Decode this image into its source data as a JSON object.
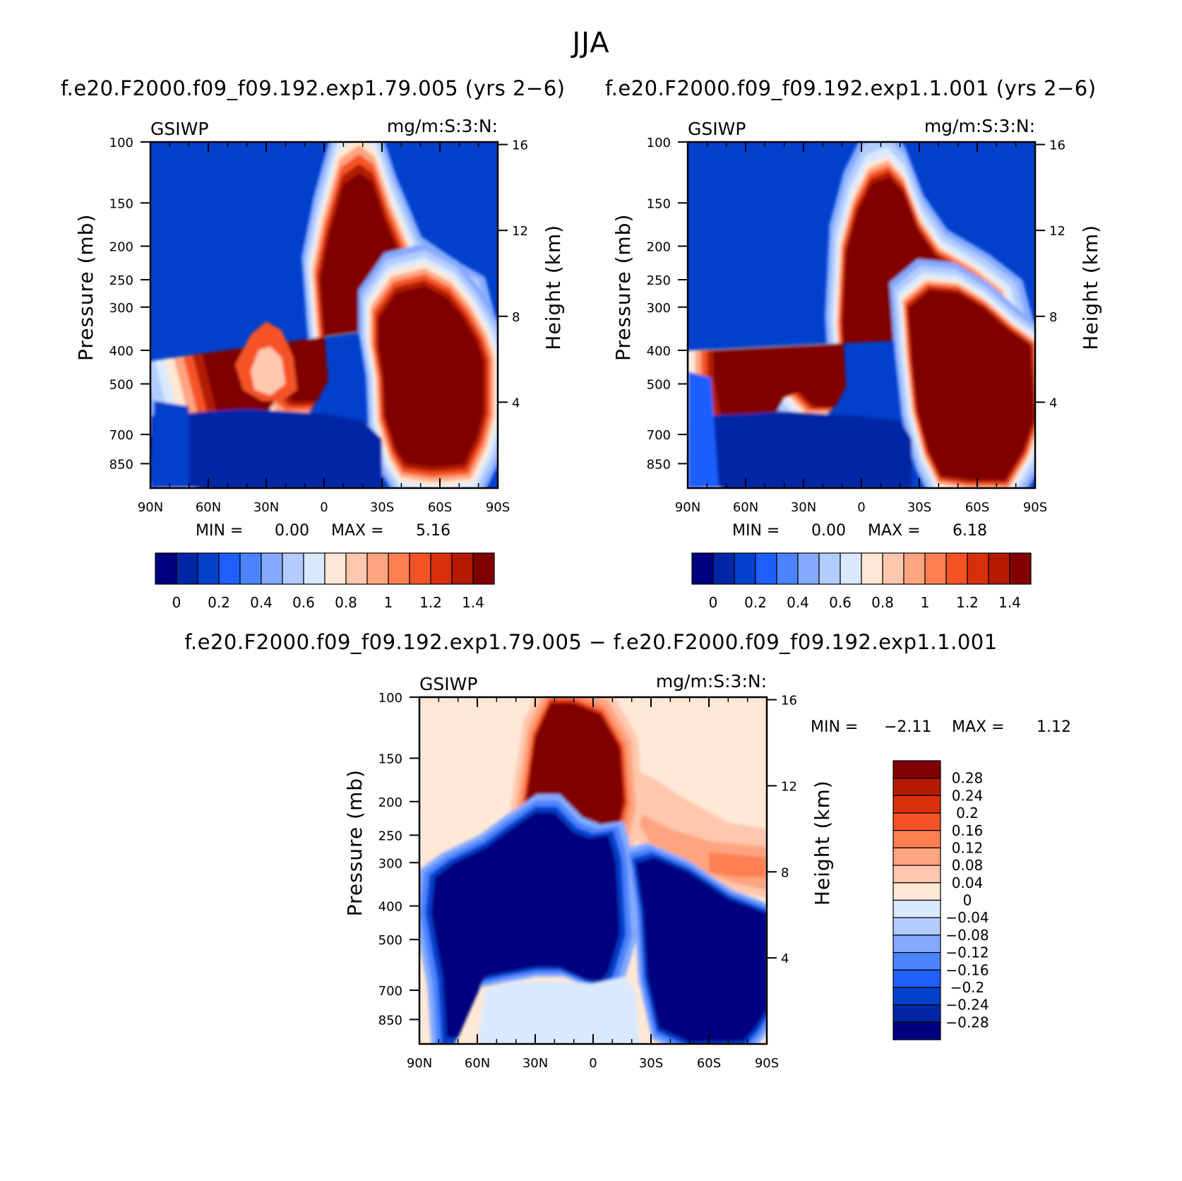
{
  "figure": {
    "title": "JJA",
    "background": "#ffffff"
  },
  "colors": {
    "abs": [
      "#000080",
      "#0026a6",
      "#0040cc",
      "#1f5eff",
      "#4c84ff",
      "#85aaff",
      "#b3ccff",
      "#d9e9ff",
      "#ffe8d6",
      "#ffc7ad",
      "#ffa480",
      "#ff7f52",
      "#f55325",
      "#d9300c",
      "#b31a00",
      "#800000"
    ],
    "diff": [
      "#000080",
      "#0026a6",
      "#0040cc",
      "#1f5eff",
      "#4c84ff",
      "#85aaff",
      "#b3ccff",
      "#d9e9ff",
      "#ffe8d6",
      "#ffc7ad",
      "#ffa480",
      "#ff7f52",
      "#f55325",
      "#d9300c",
      "#b31a00",
      "#800000"
    ]
  },
  "chart_data": [
    {
      "type": "heatmap",
      "title": "f.e20.F2000.f09_f09.192.exp1.79.005 (yrs 2−6)",
      "left_label": "GSIWP",
      "units": "mg/m:S:3:N:",
      "ylabel": "Pressure (mb)",
      "y2label": "Height (km)",
      "x_ticks": [
        "90N",
        "60N",
        "30N",
        "0",
        "30S",
        "60S",
        "90S"
      ],
      "y_ticks": [
        100,
        150,
        200,
        250,
        300,
        400,
        500,
        700,
        850
      ],
      "y2_ticks": [
        16,
        12,
        8,
        4
      ],
      "ylim": [
        100,
        1000
      ],
      "min_text": "MIN =",
      "min_value": "0.00",
      "max_text": "MAX =",
      "max_value": "5.16",
      "colorbar_labels": [
        "0",
        "0.2",
        "0.4",
        "0.6",
        "0.8",
        "1",
        "1.2",
        "1.4"
      ],
      "levels": [
        -0.1,
        0,
        0.1,
        0.2,
        0.3,
        0.4,
        0.5,
        0.6,
        0.7,
        0.8,
        0.9,
        1.0,
        1.1,
        1.2,
        1.3,
        1.4
      ]
    },
    {
      "type": "heatmap",
      "title": "f.e20.F2000.f09_f09.192.exp1.1.001 (yrs 2−6)",
      "left_label": "GSIWP",
      "units": "mg/m:S:3:N:",
      "ylabel": "Pressure (mb)",
      "y2label": "Height (km)",
      "x_ticks": [
        "90N",
        "60N",
        "30N",
        "0",
        "30S",
        "60S",
        "90S"
      ],
      "y_ticks": [
        100,
        150,
        200,
        250,
        300,
        400,
        500,
        700,
        850
      ],
      "y2_ticks": [
        16,
        12,
        8,
        4
      ],
      "ylim": [
        100,
        1000
      ],
      "min_text": "MIN =",
      "min_value": "0.00",
      "max_text": "MAX =",
      "max_value": "6.18",
      "colorbar_labels": [
        "0",
        "0.2",
        "0.4",
        "0.6",
        "0.8",
        "1",
        "1.2",
        "1.4"
      ],
      "levels": [
        -0.1,
        0,
        0.1,
        0.2,
        0.3,
        0.4,
        0.5,
        0.6,
        0.7,
        0.8,
        0.9,
        1.0,
        1.1,
        1.2,
        1.3,
        1.4
      ]
    },
    {
      "type": "heatmap",
      "title": "f.e20.F2000.f09_f09.192.exp1.79.005 − f.e20.F2000.f09_f09.192.exp1.1.001",
      "left_label": "GSIWP",
      "units": "mg/m:S:3:N:",
      "ylabel": "Pressure (mb)",
      "y2label": "Height (km)",
      "x_ticks": [
        "90N",
        "60N",
        "30N",
        "0",
        "30S",
        "60S",
        "90S"
      ],
      "y_ticks": [
        100,
        150,
        200,
        250,
        300,
        400,
        500,
        700,
        850
      ],
      "y2_ticks": [
        16,
        12,
        8,
        4
      ],
      "ylim": [
        100,
        1000
      ],
      "min_text": "MIN =",
      "min_value": "−2.11",
      "max_text": "MAX =",
      "max_value": "1.12",
      "colorbar_labels": [
        "0.28",
        "0.24",
        "0.2",
        "0.16",
        "0.12",
        "0.08",
        "0.04",
        "0",
        "−0.04",
        "−0.08",
        "−0.12",
        "−0.16",
        "−0.2",
        "−0.24",
        "−0.28"
      ],
      "levels": [
        -0.28,
        -0.24,
        -0.2,
        -0.16,
        -0.12,
        -0.08,
        -0.04,
        0,
        0.04,
        0.08,
        0.12,
        0.16,
        0.2,
        0.24,
        0.28
      ]
    }
  ]
}
